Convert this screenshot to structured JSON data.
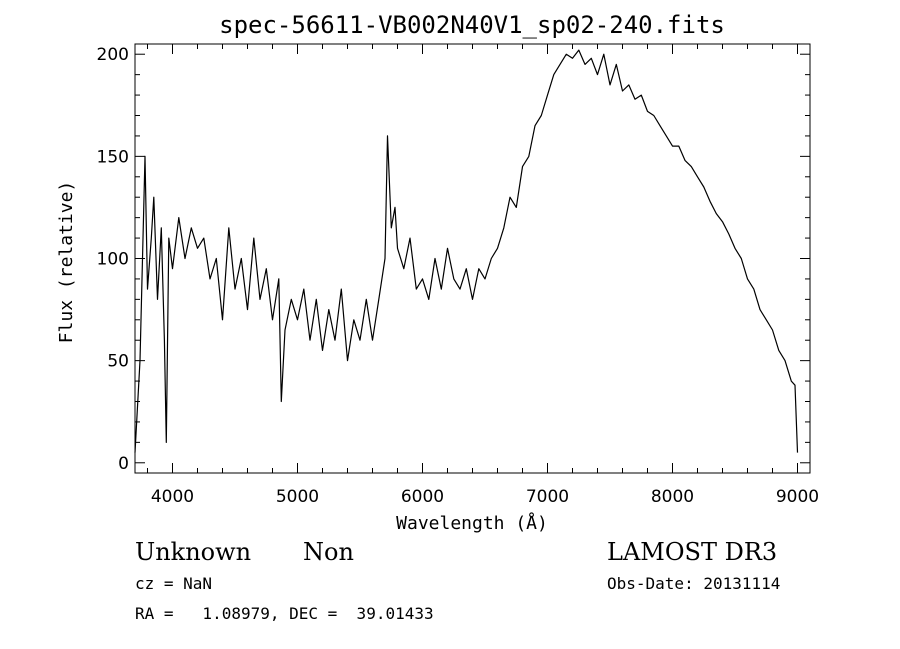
{
  "chart_data": {
    "type": "line",
    "title": "spec-56611-VB002N40V1_sp02-240.fits",
    "xlabel": "Wavelength (Å)",
    "ylabel": "Flux (relative)",
    "xlim": [
      3700,
      9100
    ],
    "ylim": [
      -5,
      205
    ],
    "x_ticks": [
      4000,
      5000,
      6000,
      7000,
      8000,
      9000
    ],
    "x_tick_labels": [
      "4000",
      "5000",
      "6000",
      "7000",
      "8000",
      "9000"
    ],
    "y_ticks": [
      0,
      50,
      100,
      150,
      200
    ],
    "y_tick_labels": [
      "0",
      "50",
      "100",
      "150",
      "200"
    ],
    "grid": false,
    "series": [
      {
        "name": "flux",
        "x": [
          3700,
          3740,
          3780,
          3800,
          3830,
          3850,
          3880,
          3910,
          3935,
          3950,
          3970,
          4000,
          4050,
          4100,
          4150,
          4200,
          4250,
          4300,
          4350,
          4400,
          4450,
          4500,
          4550,
          4600,
          4650,
          4700,
          4750,
          4800,
          4850,
          4870,
          4900,
          4950,
          5000,
          5050,
          5100,
          5150,
          5200,
          5250,
          5300,
          5350,
          5400,
          5450,
          5500,
          5550,
          5600,
          5650,
          5700,
          5720,
          5750,
          5780,
          5800,
          5850,
          5900,
          5950,
          6000,
          6050,
          6100,
          6150,
          6200,
          6250,
          6300,
          6350,
          6400,
          6450,
          6500,
          6550,
          6600,
          6650,
          6700,
          6750,
          6800,
          6850,
          6900,
          6950,
          7000,
          7050,
          7100,
          7150,
          7200,
          7250,
          7300,
          7350,
          7400,
          7450,
          7500,
          7550,
          7600,
          7650,
          7700,
          7750,
          7800,
          7850,
          7900,
          7950,
          8000,
          8050,
          8100,
          8150,
          8200,
          8250,
          8300,
          8350,
          8400,
          8450,
          8500,
          8550,
          8600,
          8650,
          8700,
          8750,
          8800,
          8850,
          8900,
          8950,
          8980,
          9000
        ],
        "values": [
          5,
          50,
          150,
          85,
          110,
          130,
          80,
          115,
          60,
          10,
          110,
          95,
          120,
          100,
          115,
          105,
          110,
          90,
          100,
          70,
          115,
          85,
          100,
          75,
          110,
          80,
          95,
          70,
          90,
          30,
          65,
          80,
          70,
          85,
          60,
          80,
          55,
          75,
          60,
          85,
          50,
          70,
          60,
          80,
          60,
          80,
          100,
          160,
          115,
          125,
          105,
          95,
          110,
          85,
          90,
          80,
          100,
          85,
          105,
          90,
          85,
          95,
          80,
          95,
          90,
          100,
          105,
          115,
          130,
          125,
          145,
          150,
          165,
          170,
          180,
          190,
          195,
          200,
          198,
          202,
          195,
          198,
          190,
          200,
          185,
          195,
          182,
          185,
          178,
          180,
          172,
          170,
          165,
          160,
          155,
          155,
          148,
          145,
          140,
          135,
          128,
          122,
          118,
          112,
          105,
          100,
          90,
          85,
          75,
          70,
          65,
          55,
          50,
          40,
          38,
          5
        ]
      }
    ]
  },
  "footer": {
    "object_class": "Unknown",
    "object_subclass": "Non",
    "release": "LAMOST DR3",
    "cz": "cz = NaN",
    "obs_date": "Obs-Date: 20131114",
    "coords": "RA =   1.08979, DEC =  39.01433"
  }
}
